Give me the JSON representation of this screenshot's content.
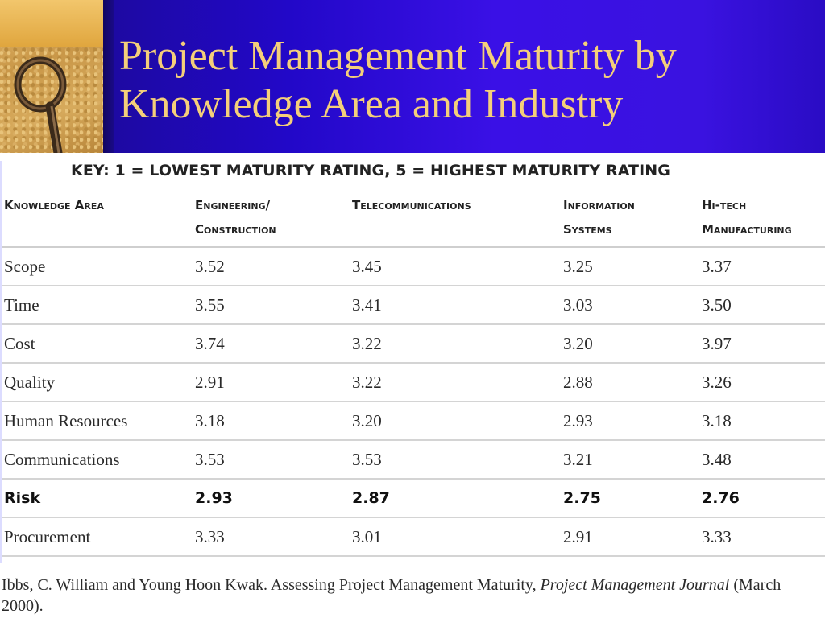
{
  "slide": {
    "title_line1": "Project Management Maturity by",
    "title_line2": "Knowledge Area and Industry",
    "image_icon": "key-photo-icon"
  },
  "colors": {
    "banner": "#2a0cc8",
    "title": "#f4cf7a",
    "text": "#222222",
    "rule": "#cfcfcf"
  },
  "table": {
    "key_text": "KEY: 1 = LOWEST MATURITY RATING, 5 = HIGHEST MATURITY RATING",
    "headers": [
      {
        "line1": "Knowledge Area",
        "line2": ""
      },
      {
        "line1": "Engineering/",
        "line2": "Construction"
      },
      {
        "line1": "Telecommunications",
        "line2": ""
      },
      {
        "line1": "Information",
        "line2": "Systems"
      },
      {
        "line1": "Hi-tech",
        "line2": "Manufacturing"
      }
    ],
    "rows": [
      {
        "area": "Scope",
        "values": [
          "3.52",
          "3.45",
          "3.25",
          "3.37"
        ],
        "bold": false
      },
      {
        "area": "Time",
        "values": [
          "3.55",
          "3.41",
          "3.03",
          "3.50"
        ],
        "bold": false
      },
      {
        "area": "Cost",
        "values": [
          "3.74",
          "3.22",
          "3.20",
          "3.97"
        ],
        "bold": false
      },
      {
        "area": "Quality",
        "values": [
          "2.91",
          "3.22",
          "2.88",
          "3.26"
        ],
        "bold": false
      },
      {
        "area": "Human Resources",
        "values": [
          "3.18",
          "3.20",
          "2.93",
          "3.18"
        ],
        "bold": false
      },
      {
        "area": "Communications",
        "values": [
          "3.53",
          "3.53",
          "3.21",
          "3.48"
        ],
        "bold": false
      },
      {
        "area": "Risk",
        "values": [
          "2.93",
          "2.87",
          "2.75",
          "2.76"
        ],
        "bold": true
      },
      {
        "area": "Procurement",
        "values": [
          "3.33",
          "3.01",
          "2.91",
          "3.33"
        ],
        "bold": false
      }
    ]
  },
  "citation": {
    "authors_title": "Ibbs, C. William and Young Hoon Kwak.  Assessing Project Management Maturity,",
    "journal": "Project Management Journal",
    "date": "(March 2000)."
  }
}
